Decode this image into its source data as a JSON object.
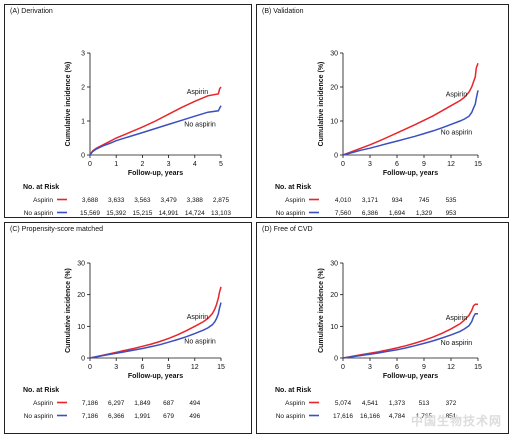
{
  "chart_data": [
    {
      "type": "line",
      "title": "(A) Derivation",
      "xlabel": "Follow-up, years",
      "ylabel": "Cumulative incidence (%)",
      "xlim": [
        0,
        5
      ],
      "ylim": [
        0,
        3
      ],
      "xticks": [
        0,
        1,
        2,
        3,
        4,
        5
      ],
      "yticks": [
        0,
        1,
        2,
        3
      ],
      "series": [
        {
          "name": "Aspirin",
          "color": "#e8252b",
          "x": [
            0,
            0.1,
            0.25,
            0.5,
            0.75,
            1,
            1.5,
            2,
            2.5,
            3,
            3.5,
            4,
            4.5,
            4.9,
            4.95,
            5
          ],
          "y": [
            0,
            0.12,
            0.2,
            0.3,
            0.4,
            0.5,
            0.66,
            0.82,
            1.0,
            1.2,
            1.4,
            1.58,
            1.74,
            1.8,
            1.95,
            2.0
          ]
        },
        {
          "name": "No aspirin",
          "color": "#3a4fc1",
          "x": [
            0,
            0.1,
            0.25,
            0.5,
            0.75,
            1,
            1.5,
            2,
            2.5,
            3,
            3.5,
            4,
            4.5,
            4.9,
            4.95,
            5
          ],
          "y": [
            0,
            0.1,
            0.18,
            0.27,
            0.34,
            0.42,
            0.54,
            0.66,
            0.78,
            0.9,
            1.02,
            1.14,
            1.26,
            1.3,
            1.38,
            1.45
          ]
        }
      ],
      "risk_table": {
        "header": "No. at Risk",
        "times": [
          0,
          1,
          2,
          3,
          4,
          5
        ],
        "rows": [
          {
            "label": "Aspirin",
            "color": "#e8252b",
            "values": [
              "3,688",
              "3,633",
              "3,563",
              "3,479",
              "3,388",
              "2,875"
            ]
          },
          {
            "label": "No aspirin",
            "color": "#3a4fc1",
            "values": [
              "15,569",
              "15,392",
              "15,215",
              "14,991",
              "14,724",
              "13,103"
            ]
          }
        ]
      }
    },
    {
      "type": "line",
      "title": "(B) Validation",
      "xlabel": "Follow-up, years",
      "ylabel": "Cumulative incidence (%)",
      "xlim": [
        0,
        15
      ],
      "ylim": [
        0,
        30
      ],
      "xticks": [
        0,
        3,
        6,
        9,
        12,
        15
      ],
      "yticks": [
        0,
        10,
        20,
        30
      ],
      "series": [
        {
          "name": "Aspirin",
          "color": "#e8252b",
          "x": [
            0,
            1,
            2,
            3,
            4,
            5,
            6,
            7,
            8,
            9,
            10,
            11,
            12,
            13,
            13.5,
            14,
            14.3,
            14.5,
            14.7,
            14.8,
            15
          ],
          "y": [
            0,
            1,
            2,
            3,
            4.1,
            5.3,
            6.5,
            7.7,
            8.9,
            10.2,
            11.5,
            13,
            14.5,
            16,
            17,
            18.5,
            20,
            21.5,
            23,
            25.5,
            27
          ]
        },
        {
          "name": "No aspirin",
          "color": "#3a4fc1",
          "x": [
            0,
            1,
            2,
            3,
            4,
            5,
            6,
            7,
            8,
            9,
            10,
            11,
            12,
            13,
            13.5,
            14,
            14.3,
            14.5,
            14.7,
            14.8,
            15
          ],
          "y": [
            0,
            0.7,
            1.4,
            2,
            2.7,
            3.4,
            4.1,
            4.8,
            5.5,
            6.3,
            7.1,
            8,
            9,
            10,
            10.6,
            11.4,
            12.5,
            13.8,
            15,
            16.5,
            19
          ]
        }
      ],
      "risk_table": {
        "header": "No. at Risk",
        "times": [
          0,
          3,
          6,
          9,
          12,
          15
        ],
        "rows": [
          {
            "label": "Aspirin",
            "color": "#e8252b",
            "values": [
              "4,010",
              "3,171",
              "934",
              "745",
              "535"
            ]
          },
          {
            "label": "No aspirin",
            "color": "#3a4fc1",
            "values": [
              "7,560",
              "6,386",
              "1,694",
              "1,329",
              "953"
            ]
          }
        ]
      }
    },
    {
      "type": "line",
      "title": "(C) Propensity-score matched",
      "xlabel": "Follow-up, years",
      "ylabel": "Cumulative incidence (%)",
      "xlim": [
        0,
        15
      ],
      "ylim": [
        0,
        30
      ],
      "xticks": [
        0,
        3,
        6,
        9,
        12,
        15
      ],
      "yticks": [
        0,
        10,
        20,
        30
      ],
      "series": [
        {
          "name": "Aspirin",
          "color": "#e8252b",
          "x": [
            0,
            1,
            2,
            3,
            4,
            5,
            6,
            7,
            8,
            9,
            10,
            11,
            12,
            13,
            13.5,
            14,
            14.3,
            14.5,
            14.7,
            14.8,
            15
          ],
          "y": [
            0,
            0.6,
            1.2,
            1.8,
            2.4,
            3,
            3.7,
            4.4,
            5.2,
            6.2,
            7.3,
            8.6,
            10,
            11.5,
            12.5,
            14,
            15.5,
            17,
            19,
            20.5,
            22.5
          ]
        },
        {
          "name": "No aspirin",
          "color": "#3a4fc1",
          "x": [
            0,
            1,
            2,
            3,
            4,
            5,
            6,
            7,
            8,
            9,
            10,
            11,
            12,
            13,
            13.5,
            14,
            14.3,
            14.5,
            14.7,
            14.8,
            15
          ],
          "y": [
            0,
            0.5,
            1,
            1.5,
            2,
            2.5,
            3,
            3.6,
            4.2,
            5,
            5.8,
            6.7,
            7.7,
            8.8,
            9.5,
            10.5,
            11.5,
            12.5,
            14,
            15.5,
            17.5
          ]
        }
      ],
      "risk_table": {
        "header": "No. at Risk",
        "times": [
          0,
          3,
          6,
          9,
          12,
          15
        ],
        "rows": [
          {
            "label": "Aspirin",
            "color": "#e8252b",
            "values": [
              "7,186",
              "6,297",
              "1,849",
              "687",
              "494"
            ]
          },
          {
            "label": "No aspirin",
            "color": "#3a4fc1",
            "values": [
              "7,186",
              "6,366",
              "1,991",
              "679",
              "496"
            ]
          }
        ]
      }
    },
    {
      "type": "line",
      "title": "(D) Free of CVD",
      "xlabel": "Follow-up, years",
      "ylabel": "Cumulative incidence (%)",
      "xlim": [
        0,
        15
      ],
      "ylim": [
        0,
        30
      ],
      "xticks": [
        0,
        3,
        6,
        9,
        12,
        15
      ],
      "yticks": [
        0,
        10,
        20,
        30
      ],
      "series": [
        {
          "name": "Aspirin",
          "color": "#e8252b",
          "x": [
            0,
            1,
            2,
            3,
            4,
            5,
            6,
            7,
            8,
            9,
            10,
            11,
            12,
            13,
            13.5,
            14,
            14.3,
            14.5,
            14.7,
            15
          ],
          "y": [
            0,
            0.5,
            1,
            1.5,
            2,
            2.6,
            3.2,
            3.9,
            4.7,
            5.6,
            6.6,
            7.8,
            9.2,
            10.8,
            12,
            13.5,
            15,
            16.5,
            17,
            17
          ]
        },
        {
          "name": "No aspirin",
          "color": "#3a4fc1",
          "x": [
            0,
            1,
            2,
            3,
            4,
            5,
            6,
            7,
            8,
            9,
            10,
            11,
            12,
            13,
            13.5,
            14,
            14.3,
            14.5,
            14.7,
            15
          ],
          "y": [
            0,
            0.4,
            0.8,
            1.2,
            1.6,
            2.1,
            2.6,
            3.2,
            3.9,
            4.6,
            5.4,
            6.3,
            7.3,
            8.4,
            9.2,
            10.2,
            11.5,
            13,
            14,
            14
          ]
        }
      ],
      "risk_table": {
        "header": "No. at Risk",
        "times": [
          0,
          3,
          6,
          9,
          12,
          15
        ],
        "rows": [
          {
            "label": "Aspirin",
            "color": "#e8252b",
            "values": [
              "5,074",
              "4,541",
              "1,373",
              "513",
              "372"
            ]
          },
          {
            "label": "No aspirin",
            "color": "#3a4fc1",
            "values": [
              "17,616",
              "16,166",
              "4,784",
              "1,765",
              "851"
            ]
          }
        ]
      }
    }
  ],
  "watermark": "中国生物技术网"
}
